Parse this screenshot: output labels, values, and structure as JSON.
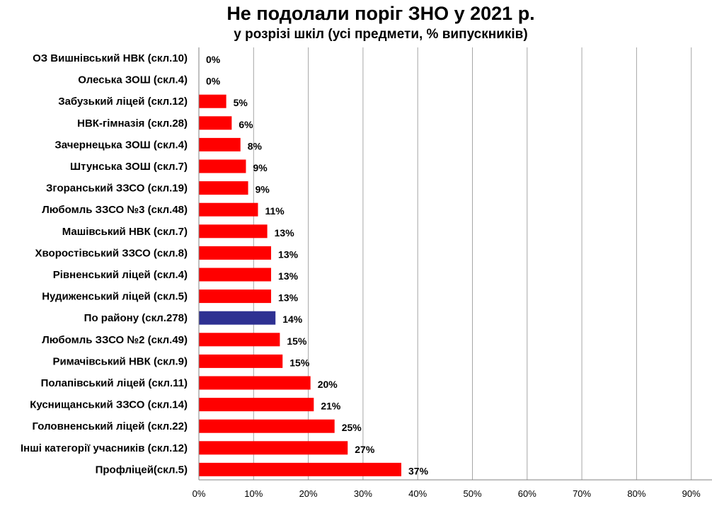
{
  "chart_data": {
    "type": "bar",
    "orientation": "horizontal",
    "title": "Не подолали поріг ЗНО у 2021 р.",
    "subtitle": "у розрізі шкіл (усі предмети, % випускників)",
    "xlim": [
      0,
      90
    ],
    "x_ticks": [
      "0%",
      "10%",
      "20%",
      "30%",
      "40%",
      "50%",
      "60%",
      "70%",
      "80%",
      "90%"
    ],
    "grid": "vertical",
    "legend": "none",
    "colors": {
      "default": "#ff0000",
      "highlight": "#2e3192"
    },
    "bars": [
      {
        "category": "ОЗ Вишнівський НВК (скл.10)",
        "value": 0,
        "label": "0%"
      },
      {
        "category": "Олеська ЗОШ (скл.4)",
        "value": 0,
        "label": "0%"
      },
      {
        "category": "Забузький ліцей (скл.12)",
        "value": 5,
        "label": "5%"
      },
      {
        "category": "НВК-гімназія (скл.28)",
        "value": 6,
        "label": "6%"
      },
      {
        "category": "Зачернецька ЗОШ (скл.4)",
        "value": 7.6,
        "label": "8%"
      },
      {
        "category": "Штунська ЗОШ (скл.7)",
        "value": 8.6,
        "label": "9%"
      },
      {
        "category": "Згоранський ЗЗСО (скл.19)",
        "value": 9,
        "label": "9%"
      },
      {
        "category": "Любомль ЗЗСО №3 (скл.48)",
        "value": 10.8,
        "label": "11%"
      },
      {
        "category": "Машівський НВК (скл.7)",
        "value": 12.5,
        "label": "13%"
      },
      {
        "category": "Хворостівський ЗЗСО (скл.8)",
        "value": 13.2,
        "label": "13%"
      },
      {
        "category": "Рівненський ліцей (скл.4)",
        "value": 13.2,
        "label": "13%"
      },
      {
        "category": "Нудиженський ліцей (скл.5)",
        "value": 13.2,
        "label": "13%"
      },
      {
        "category": "По району (скл.278)",
        "value": 14,
        "label": "14%",
        "highlight": true
      },
      {
        "category": "Любомль ЗЗСО №2 (скл.49)",
        "value": 14.8,
        "label": "15%"
      },
      {
        "category": "Римачівський НВК (скл.9)",
        "value": 15.3,
        "label": "15%"
      },
      {
        "category": "Полапівський ліцей (скл.11)",
        "value": 20.4,
        "label": "20%"
      },
      {
        "category": "Куснищанський ЗЗСО (скл.14)",
        "value": 21,
        "label": "21%"
      },
      {
        "category": "Головненський ліцей (скл.22)",
        "value": 24.8,
        "label": "25%"
      },
      {
        "category": "Інші категорії учасників (скл.12)",
        "value": 27.2,
        "label": "27%"
      },
      {
        "category": "Профліцей(скл.5)",
        "value": 37,
        "label": "37%"
      }
    ]
  }
}
